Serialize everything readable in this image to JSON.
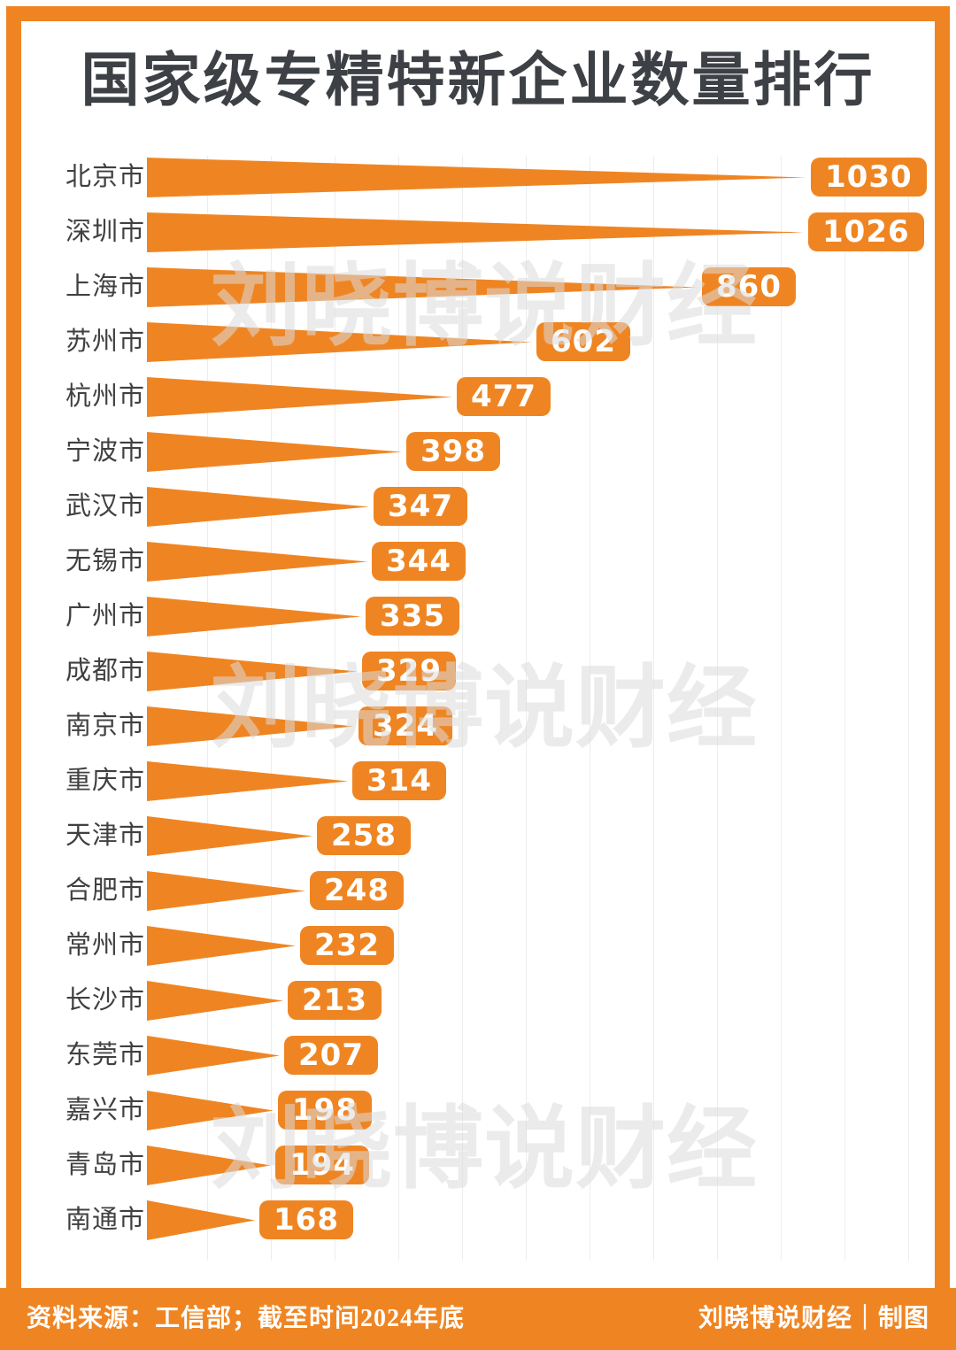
{
  "title": "国家级专精特新企业数量排行",
  "watermark": {
    "text": "刘晓博说财经"
  },
  "footer": {
    "source": "资料来源：工信部；截至时间2024年底",
    "credit": "刘晓博说财经｜制图"
  },
  "colors": {
    "accent": "#EF8522",
    "title_text": "#3D4045",
    "label_text": "#404040",
    "gridline": "#EDEDED",
    "watermark": "#DCDCDC",
    "value_text": "#FFFFFF"
  },
  "chart_data": {
    "type": "bar",
    "orientation": "horizontal",
    "title": "国家级专精特新企业数量排行",
    "categories": [
      "北京市",
      "深圳市",
      "上海市",
      "苏州市",
      "杭州市",
      "宁波市",
      "武汉市",
      "无锡市",
      "广州市",
      "成都市",
      "南京市",
      "重庆市",
      "天津市",
      "合肥市",
      "常州市",
      "长沙市",
      "东莞市",
      "嘉兴市",
      "青岛市",
      "南通市"
    ],
    "values": [
      1030,
      1026,
      860,
      602,
      477,
      398,
      347,
      344,
      335,
      329,
      324,
      314,
      258,
      248,
      232,
      213,
      207,
      198,
      194,
      168
    ],
    "xlim": [
      0,
      1240
    ],
    "gridline_interval": 100,
    "grid": true,
    "legend": "none",
    "value_label_style": "badge-at-bar-tip"
  }
}
